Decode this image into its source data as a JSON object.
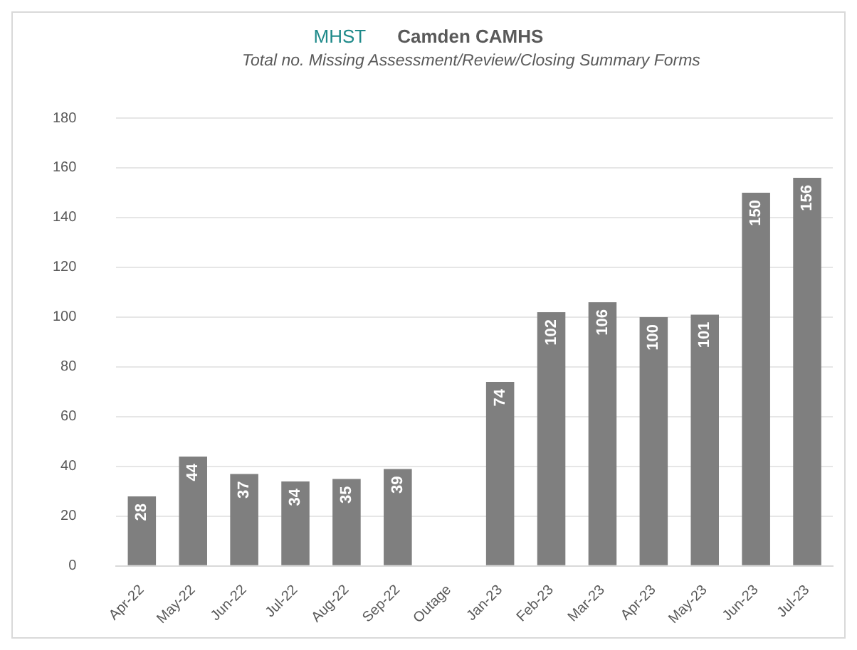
{
  "chart_data": {
    "type": "bar",
    "title": "Camden CAMHS",
    "subtitle": "Total no. Missing Assessment/Review/Closing Summary Forms",
    "annotations": [
      "MHST"
    ],
    "categories": [
      "Apr-22",
      "May-22",
      "Jun-22",
      "Jul-22",
      "Aug-22",
      "Sep-22",
      "Outage",
      "Jan-23",
      "Feb-23",
      "Mar-23",
      "Apr-23",
      "May-23",
      "Jun-23",
      "Jul-23"
    ],
    "values": [
      28,
      44,
      37,
      34,
      35,
      39,
      null,
      74,
      102,
      106,
      100,
      101,
      150,
      156
    ],
    "color": "#7f7f7f",
    "ylim": [
      0,
      180
    ],
    "yticks": [
      0,
      20,
      40,
      60,
      80,
      100,
      120,
      140,
      160,
      180
    ],
    "grid": "y",
    "data_labels": true,
    "legend": false
  }
}
